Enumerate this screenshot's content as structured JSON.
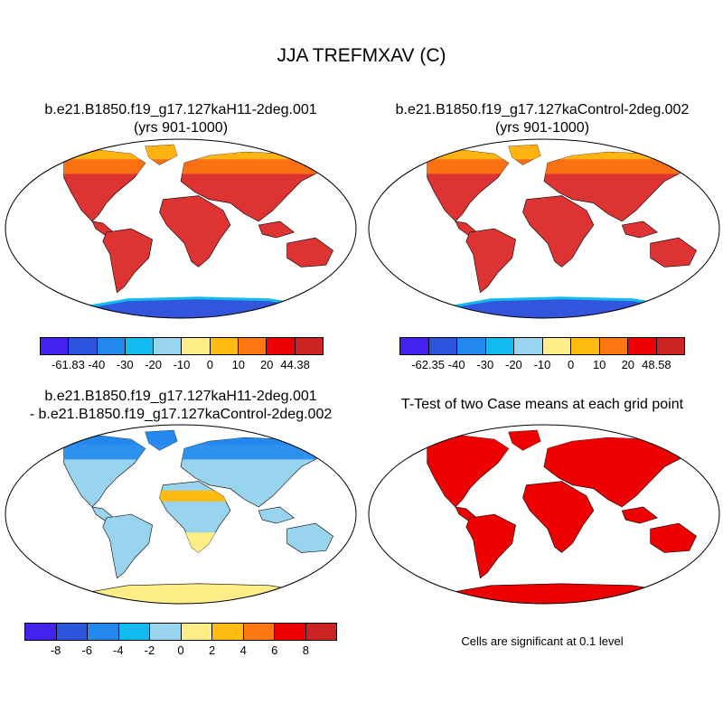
{
  "title": "JJA TREFMXAV (C)",
  "panels": {
    "case1": {
      "title_line1": "b.e21.B1850.f19_g17.127kaH11-2deg.001",
      "title_line2": "(yrs 901-1000)"
    },
    "case2": {
      "title_line1": "b.e21.B1850.f19_g17.127kaControl-2deg.002",
      "title_line2": "(yrs 901-1000)"
    },
    "diff": {
      "title_line1": "b.e21.B1850.f19_g17.127kaH11-2deg.001",
      "title_line2": "- b.e21.B1850.f19_g17.127kaControl-2deg.002"
    },
    "ttest": {
      "title_line1": "T-Test of two Case means at each grid point",
      "note": "Cells are significant at 0.1 level"
    }
  },
  "colorbars": {
    "case1": {
      "colors": [
        "#4422ee",
        "#2b55dd",
        "#2288ee",
        "#11bbf0",
        "#99d4ee",
        "#ffee88",
        "#ffbb11",
        "#ff7711",
        "#ee0000",
        "#cc2222"
      ],
      "labels": [
        "-61.83",
        "-40",
        "-30",
        "-20",
        "-10",
        "0",
        "10",
        "20",
        "44.38"
      ]
    },
    "case2": {
      "colors": [
        "#4422ee",
        "#2b55dd",
        "#2288ee",
        "#11bbf0",
        "#99d4ee",
        "#ffee88",
        "#ffbb11",
        "#ff7711",
        "#ee0000",
        "#cc2222"
      ],
      "labels": [
        "-62.35",
        "-40",
        "-30",
        "-20",
        "-10",
        "0",
        "10",
        "20",
        "48.58"
      ]
    },
    "diff": {
      "colors": [
        "#4422ee",
        "#2b55dd",
        "#2288ee",
        "#11bbf0",
        "#99d4ee",
        "#ffee88",
        "#ffbb11",
        "#ff7711",
        "#ee0000",
        "#cc2222"
      ],
      "labels": [
        "-8",
        "-6",
        "-4",
        "-2",
        "0",
        "2",
        "4",
        "6",
        "8"
      ]
    }
  },
  "map_colors": {
    "ocean": "#ffffff",
    "case_fill": "#dd3333",
    "case_warm": "#ff7711",
    "case_mid": "#ffbb11",
    "case_cool": "#ffee88",
    "antarctica_case": "#3355dd",
    "antarctica_edge": "#11bbf0",
    "diff_north": "#2288ee",
    "diff_mid": "#99d4ee",
    "diff_warm": "#ffee88",
    "diff_hot": "#ffbb11",
    "ttest_fill": "#ee0000"
  }
}
